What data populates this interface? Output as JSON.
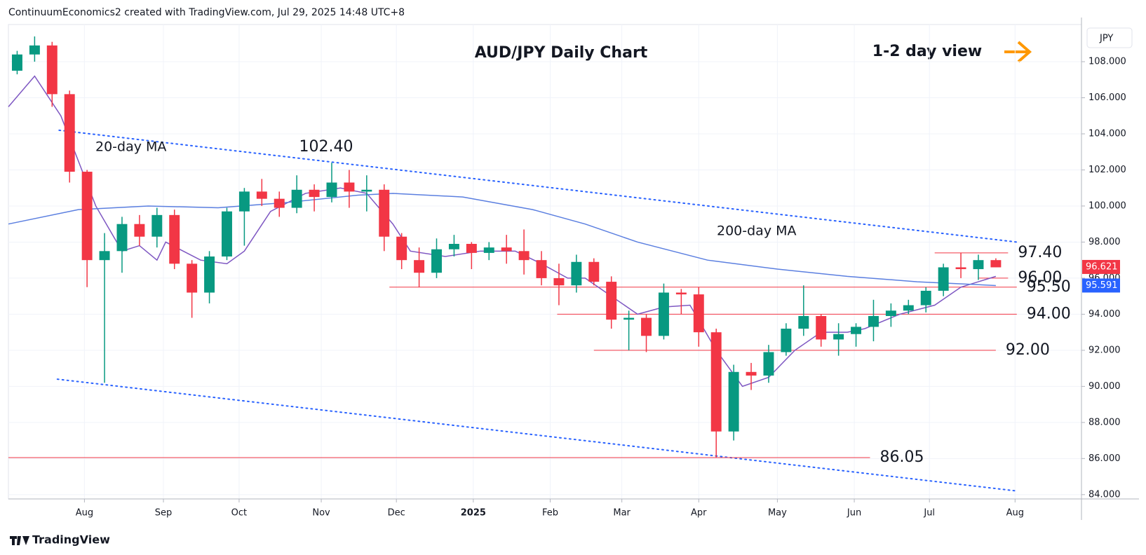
{
  "header": "ContinuumEconomics2 created with TradingView.com, Jul 29, 2025 14:48 UTC+8",
  "currency": "JPY",
  "view": "1-2 day view",
  "brand": "TradingView",
  "chart_data": {
    "type": "candlestick",
    "title": "AUD/JPY Daily Chart",
    "xlim": [
      0,
      61.4
    ],
    "ylim": [
      83.76,
      110.06
    ],
    "yticks": [
      {
        "value": 84,
        "label": "84.000"
      },
      {
        "value": 86,
        "label": "86.000"
      },
      {
        "value": 88,
        "label": "88.000"
      },
      {
        "value": 90,
        "label": "90.000"
      },
      {
        "value": 92,
        "label": "92.000"
      },
      {
        "value": 94,
        "label": "94.000"
      },
      {
        "value": 96,
        "label": "96.000"
      },
      {
        "value": 98,
        "label": "98.000"
      },
      {
        "value": 100,
        "label": "100.000"
      },
      {
        "value": 102,
        "label": "102.000"
      },
      {
        "value": 104,
        "label": "104.000"
      },
      {
        "value": 106,
        "label": "106.000"
      },
      {
        "value": 108,
        "label": "108.000"
      }
    ],
    "xticks": [
      {
        "value": 4.35,
        "label": "Aug"
      },
      {
        "value": 8.87,
        "label": "Sep"
      },
      {
        "value": 13.2,
        "label": "Oct"
      },
      {
        "value": 17.9,
        "label": "Nov"
      },
      {
        "value": 22.2,
        "label": "Dec"
      },
      {
        "value": 26.6,
        "label": "2025"
      },
      {
        "value": 31.0,
        "label": "Feb"
      },
      {
        "value": 35.1,
        "label": "Mar"
      },
      {
        "value": 39.5,
        "label": "Apr"
      },
      {
        "value": 44.0,
        "label": "May"
      },
      {
        "value": 48.4,
        "label": "Jun"
      },
      {
        "value": 52.7,
        "label": "Jul"
      },
      {
        "value": 57.6,
        "label": "Aug"
      }
    ],
    "grid": true,
    "up_color": "#089981",
    "down_color": "#f23645",
    "candles": {
      "x": [
        0.5,
        1.5,
        2.5,
        3.5,
        4.5,
        5.5,
        6.5,
        7.5,
        8.5,
        9.5,
        10.5,
        11.5,
        12.5,
        13.5,
        14.5,
        15.5,
        16.5,
        17.5,
        18.5,
        19.5,
        20.5,
        21.5,
        22.5,
        23.5,
        24.5,
        25.5,
        26.5,
        27.5,
        28.5,
        29.5,
        30.5,
        31.5,
        32.5,
        33.5,
        34.5,
        35.5,
        36.5,
        37.5,
        38.5,
        39.5,
        40.5,
        41.5,
        42.5,
        43.5,
        44.5,
        45.5,
        46.5,
        47.5,
        48.5,
        49.5,
        50.5,
        51.5,
        52.5,
        53.5,
        54.5,
        55.5,
        56.5
      ],
      "open": [
        107.5,
        108.4,
        108.9,
        106.2,
        101.9,
        97.0,
        97.5,
        99.0,
        98.3,
        99.5,
        96.8,
        95.2,
        97.2,
        99.7,
        100.8,
        100.4,
        99.9,
        100.9,
        100.5,
        101.3,
        100.8,
        100.9,
        98.3,
        97.0,
        96.3,
        97.6,
        97.9,
        97.4,
        97.7,
        97.5,
        97.0,
        96.0,
        95.6,
        96.9,
        95.8,
        93.7,
        93.8,
        92.8,
        95.2,
        95.1,
        93.0,
        87.5,
        90.8,
        90.6,
        91.9,
        93.2,
        93.9,
        92.6,
        92.9,
        93.3,
        93.9,
        94.2,
        94.5,
        95.3,
        96.6,
        96.5,
        97.0
      ],
      "high": [
        108.6,
        109.4,
        109.1,
        106.4,
        102.0,
        98.5,
        99.4,
        99.5,
        99.9,
        99.8,
        97.0,
        97.5,
        99.9,
        101.0,
        101.5,
        100.8,
        101.7,
        101.2,
        102.4,
        102.0,
        101.7,
        101.2,
        98.5,
        97.7,
        98.2,
        98.4,
        98.0,
        98.0,
        98.4,
        98.7,
        97.5,
        96.8,
        97.3,
        97.1,
        96.1,
        94.2,
        94.0,
        95.7,
        95.4,
        95.5,
        93.2,
        91.2,
        91.3,
        92.3,
        93.5,
        95.6,
        94.0,
        93.5,
        93.5,
        94.8,
        94.6,
        94.8,
        95.5,
        96.8,
        97.4,
        97.3,
        97.1
      ],
      "low": [
        107.3,
        108.0,
        105.5,
        101.3,
        95.5,
        90.2,
        96.3,
        97.8,
        97.7,
        96.5,
        93.8,
        94.6,
        97.0,
        97.8,
        100.0,
        99.4,
        99.6,
        99.7,
        100.2,
        99.9,
        99.7,
        97.5,
        96.5,
        95.5,
        96.0,
        97.2,
        96.5,
        97.0,
        96.8,
        96.2,
        95.6,
        94.5,
        95.2,
        95.6,
        93.2,
        92.0,
        91.9,
        92.6,
        94.0,
        92.2,
        86.05,
        87.0,
        89.8,
        90.2,
        91.7,
        92.8,
        92.2,
        91.7,
        92.2,
        92.5,
        93.3,
        94.0,
        94.1,
        95.0,
        96.0,
        95.9,
        96.6
      ],
      "close": [
        108.4,
        108.9,
        106.2,
        101.9,
        97.0,
        97.5,
        99.0,
        98.3,
        99.5,
        96.8,
        95.2,
        97.2,
        99.7,
        100.8,
        100.4,
        99.9,
        100.9,
        100.5,
        101.3,
        100.8,
        100.9,
        98.3,
        97.0,
        96.3,
        97.6,
        97.9,
        97.4,
        97.7,
        97.5,
        97.0,
        96.0,
        95.6,
        96.9,
        95.8,
        93.7,
        93.8,
        92.8,
        95.2,
        95.1,
        93.0,
        87.5,
        90.8,
        90.6,
        91.9,
        93.2,
        93.9,
        92.6,
        92.9,
        93.3,
        93.9,
        94.2,
        94.5,
        95.3,
        96.6,
        96.5,
        97.0,
        96.6
      ]
    },
    "series": [
      {
        "name": "20-day MA",
        "color": "#7e57c2",
        "x": [
          0,
          1.5,
          3,
          5,
          6.5,
          7.5,
          8.5,
          9,
          11,
          12.5,
          13.5,
          15,
          17,
          19,
          20.5,
          22,
          23,
          25,
          27,
          29,
          30.5,
          32,
          33,
          34.5,
          36,
          37.5,
          39,
          40.5,
          42,
          43.5,
          45,
          46.5,
          48,
          49,
          51,
          53,
          54.5,
          56.5
        ],
        "values": [
          105.5,
          107.2,
          105,
          100,
          97.5,
          97.8,
          97,
          98,
          97,
          96.8,
          97.5,
          99.7,
          100.7,
          101,
          100.7,
          99,
          97.5,
          97.2,
          97.5,
          97.5,
          96.8,
          96,
          96,
          95,
          94,
          94.4,
          94.5,
          92,
          90,
          90.5,
          92,
          93,
          93,
          93.2,
          94,
          94.5,
          95.5,
          96.1
        ]
      },
      {
        "name": "200-day MA",
        "color": "#5b7fe0",
        "x": [
          0,
          4,
          8,
          12,
          16,
          20,
          22,
          26,
          30,
          33,
          36,
          40,
          44,
          48,
          52,
          56.5
        ],
        "values": [
          99.0,
          99.8,
          100.0,
          99.9,
          100.2,
          100.6,
          100.7,
          100.5,
          99.8,
          99.0,
          98.0,
          97.0,
          96.5,
          96.1,
          95.8,
          95.59
        ]
      }
    ],
    "trendlines": [
      {
        "x": [
          2.9,
          57.7
        ],
        "values": [
          104.2,
          98.0
        ]
      },
      {
        "x": [
          2.8,
          57.7
        ],
        "values": [
          90.4,
          84.2
        ]
      }
    ],
    "levels": [
      {
        "value": 97.4,
        "label": "97.40",
        "x": [
          53.0,
          57.2
        ]
      },
      {
        "value": 96.0,
        "label": "96.00",
        "x": [
          55.5,
          57.2
        ]
      },
      {
        "value": 95.5,
        "label": "95.50",
        "x": [
          21.8,
          57.7
        ]
      },
      {
        "value": 94.0,
        "label": "94.00",
        "x": [
          31.4,
          57.7
        ]
      },
      {
        "value": 92.0,
        "label": "92.00",
        "x": [
          33.5,
          56.5
        ]
      },
      {
        "value": 86.05,
        "label": "86.05",
        "x": [
          0,
          49.3
        ]
      }
    ],
    "high_annotation": {
      "value": 102.4,
      "label": "102.40"
    },
    "price_tags": [
      {
        "value": 96.621,
        "label": "96.621",
        "color": "#f23645"
      },
      {
        "value": 95.591,
        "label": "95.591",
        "color": "#2962ff"
      }
    ]
  }
}
